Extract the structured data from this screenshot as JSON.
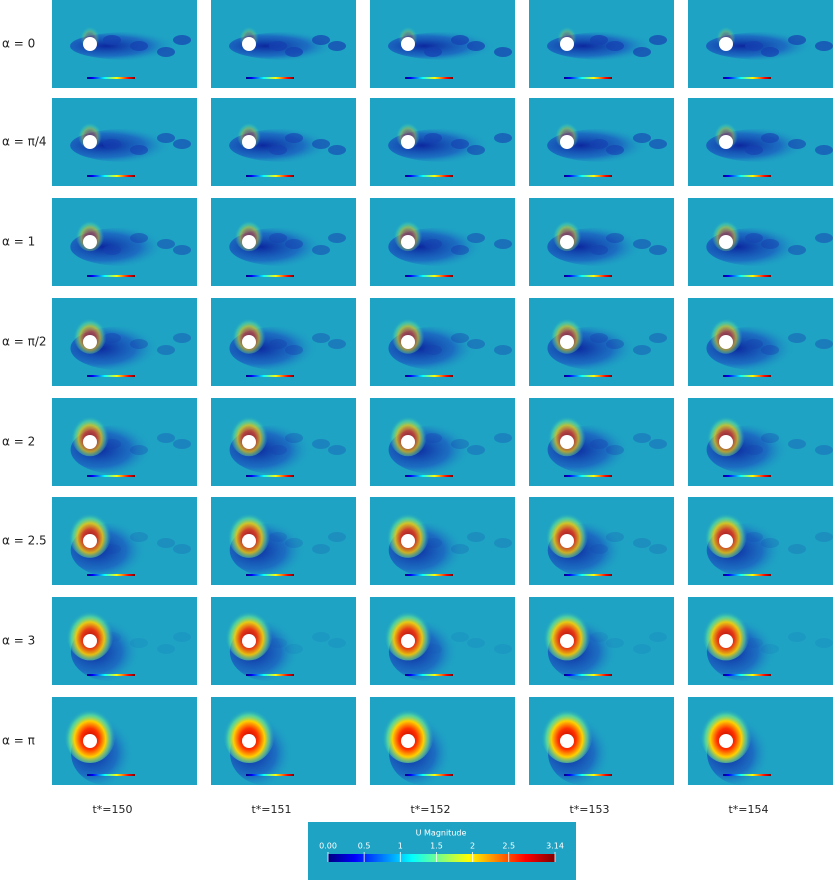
{
  "row_labels": [
    "α = 0",
    "α = π/4",
    "α = 1",
    "α = π/2",
    "α = 2",
    "α = 2.5",
    "α = 3",
    "α = π"
  ],
  "column_labels": [
    "t*=150",
    "t*=151",
    "t*=152",
    "t*=153",
    "t*=154"
  ],
  "colorbar": {
    "title": "U Magnitude",
    "range": [
      0,
      3.14
    ],
    "ticks": [
      {
        "value": 0,
        "label": "0.00"
      },
      0.5,
      1,
      1.5,
      2,
      2.5,
      3.14
    ]
  }
}
